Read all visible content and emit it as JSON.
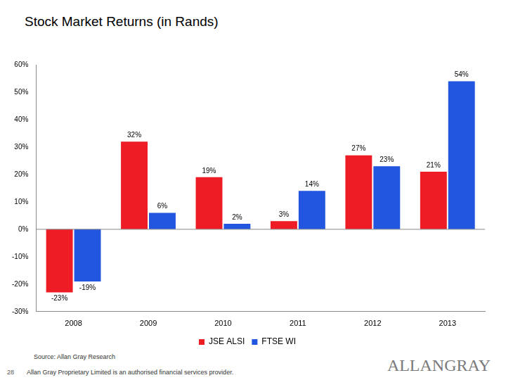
{
  "chart_data": {
    "type": "bar",
    "title": "Stock Market Returns (in Rands)",
    "categories": [
      "2008",
      "2009",
      "2010",
      "2011",
      "2012",
      "2013"
    ],
    "series": [
      {
        "name": "JSE ALSI",
        "color": "#ee1c25",
        "values": [
          -23,
          32,
          19,
          3,
          27,
          21
        ],
        "value_labels": [
          "-23%",
          "32%",
          "19%",
          "3%",
          "27%",
          "21%"
        ]
      },
      {
        "name": "FTSE WI",
        "color": "#2255e0",
        "values": [
          -19,
          6,
          2,
          14,
          23,
          54
        ],
        "value_labels": [
          "-19%",
          "6%",
          "2%",
          "14%",
          "23%",
          "54%"
        ]
      }
    ],
    "ylim": [
      -30,
      60
    ],
    "yticks": [
      {
        "value": -30,
        "label": "-30%"
      },
      {
        "value": -20,
        "label": "-20%"
      },
      {
        "value": -10,
        "label": "-10%"
      },
      {
        "value": 0,
        "label": "0%"
      },
      {
        "value": 10,
        "label": "10%"
      },
      {
        "value": 20,
        "label": "20%"
      },
      {
        "value": 30,
        "label": "30%"
      },
      {
        "value": 40,
        "label": "40%"
      },
      {
        "value": 50,
        "label": "50%"
      },
      {
        "value": 60,
        "label": "60%"
      }
    ],
    "grid": false,
    "legend": "bottom",
    "data_labels": true
  },
  "footer": {
    "source": "Source: Allan Gray Research",
    "page": "28",
    "disclaimer": "Allan Gray Proprietary Limited is an authorised financial services provider.",
    "logo": "ALLANGRAY"
  }
}
